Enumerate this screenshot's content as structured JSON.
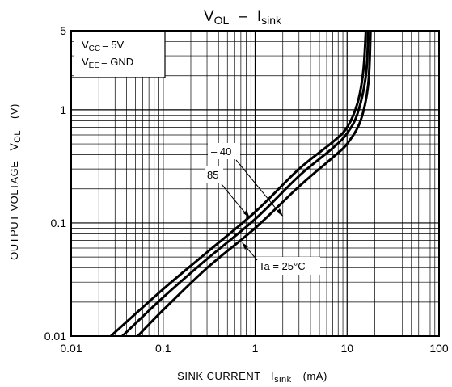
{
  "chart_data": {
    "type": "line",
    "title": {
      "main": "V",
      "main_sub": "OL",
      "dash": "–",
      "second": "I",
      "second_sub": "sink"
    },
    "xlabel": {
      "text": "SINK CURRENT",
      "sym": "I",
      "sym_sub": "sink",
      "unit": "(mA)"
    },
    "ylabel": {
      "text": "OUTPUT VOLTAGE",
      "sym": "V",
      "sym_sub": "OL",
      "unit": "(V)"
    },
    "x_scale": "log",
    "y_scale": "log",
    "xlim": [
      0.01,
      100
    ],
    "ylim": [
      0.01,
      5
    ],
    "x_ticks": [
      {
        "value": 0.01,
        "label": "0.01"
      },
      {
        "value": 0.1,
        "label": "0.1"
      },
      {
        "value": 1,
        "label": "1"
      },
      {
        "value": 10,
        "label": "10"
      },
      {
        "value": 100,
        "label": "100"
      }
    ],
    "y_ticks": [
      {
        "value": 0.01,
        "label": "0.01"
      },
      {
        "value": 0.1,
        "label": "0.1"
      },
      {
        "value": 1,
        "label": "1"
      },
      {
        "value": 5,
        "label": "5"
      }
    ],
    "grid": true,
    "conditions": [
      {
        "sym": "V",
        "sub": "CC",
        "rest": "= 5V"
      },
      {
        "sym": "V",
        "sub": "EE",
        "rest": "= GND"
      }
    ],
    "series": [
      {
        "name": "– 40",
        "x": [
          0.027,
          0.1,
          0.3,
          1,
          3,
          7,
          10,
          13,
          15,
          16
        ],
        "y": [
          0.01,
          0.026,
          0.055,
          0.125,
          0.3,
          0.52,
          0.7,
          1.15,
          2.2,
          5
        ]
      },
      {
        "name": "Ta = 25°C",
        "x": [
          0.036,
          0.1,
          0.3,
          1,
          3,
          7,
          10,
          13,
          16,
          17
        ],
        "y": [
          0.01,
          0.022,
          0.048,
          0.108,
          0.26,
          0.46,
          0.62,
          0.93,
          2.0,
          5
        ]
      },
      {
        "name": "85",
        "x": [
          0.053,
          0.1,
          0.3,
          1,
          3,
          7,
          10,
          14,
          17,
          18
        ],
        "y": [
          0.01,
          0.017,
          0.04,
          0.09,
          0.21,
          0.38,
          0.5,
          0.8,
          1.7,
          5
        ]
      }
    ],
    "annotations": [
      {
        "text": "– 40",
        "series": "– 40"
      },
      {
        "text": "85",
        "series": "85"
      },
      {
        "text": "Ta = 25°C",
        "series": "Ta = 25°C"
      }
    ]
  }
}
